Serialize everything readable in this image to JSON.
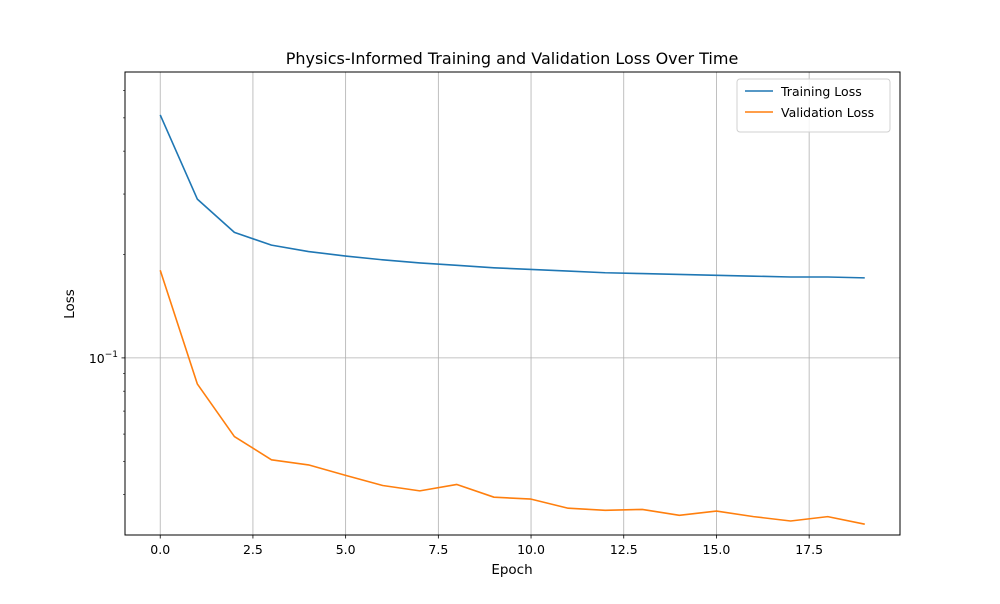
{
  "chart_data": {
    "type": "line",
    "title": "Physics-Informed Training and Validation Loss Over Time",
    "xlabel": "Epoch",
    "ylabel": "Loss",
    "xlim": [
      -0.95,
      19.95
    ],
    "ylim": [
      0.0305,
      0.68
    ],
    "yscale": "log",
    "grid": true,
    "legend_position": "top-right",
    "x_ticks": [
      0,
      2.5,
      5,
      7.5,
      10,
      12.5,
      15,
      17.5
    ],
    "x_tick_labels": [
      "0.0",
      "2.5",
      "5.0",
      "7.5",
      "10.0",
      "12.5",
      "15.0",
      "17.5"
    ],
    "y_ticks": [
      0.1
    ],
    "y_tick_labels": [
      {
        "base": "10",
        "exp": "−1"
      }
    ],
    "x": [
      0,
      1,
      2,
      3,
      4,
      5,
      6,
      7,
      8,
      9,
      10,
      11,
      12,
      13,
      14,
      15,
      16,
      17,
      18,
      19
    ],
    "series": [
      {
        "name": "Training Loss",
        "color": "#1f77b4",
        "values": [
          0.51,
          0.29,
          0.232,
          0.213,
          0.204,
          0.198,
          0.193,
          0.189,
          0.186,
          0.183,
          0.181,
          0.179,
          0.177,
          0.176,
          0.175,
          0.174,
          0.173,
          0.172,
          0.172,
          0.171
        ]
      },
      {
        "name": "Validation Loss",
        "color": "#ff7f0e",
        "values": [
          0.18,
          0.084,
          0.059,
          0.0505,
          0.0488,
          0.0455,
          0.0425,
          0.041,
          0.0428,
          0.0393,
          0.0388,
          0.0365,
          0.036,
          0.0362,
          0.0348,
          0.0358,
          0.0345,
          0.0335,
          0.0345,
          0.0328
        ]
      }
    ]
  }
}
